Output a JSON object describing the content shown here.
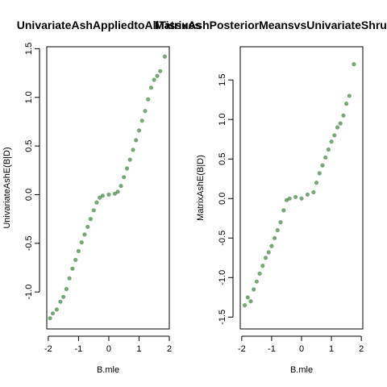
{
  "chart_data": [
    {
      "type": "scatter",
      "title": "UnivariateAshAppliedtoAllTissues",
      "xlabel": "B.mle",
      "ylabel": "UnivariateAshE(B|D)",
      "xlim": [
        -2.05,
        2.0
      ],
      "ylim": [
        -1.38,
        1.52
      ],
      "xticks": [
        -2,
        -1,
        0,
        1,
        2
      ],
      "yticks": [
        -1.0,
        -0.5,
        0.0,
        0.5,
        1.0,
        1.5
      ],
      "x_tick_labels": [
        "-2",
        "-1",
        "0",
        "1",
        "2"
      ],
      "y_tick_labels": [
        "-1.0",
        "-0.5",
        "0.0",
        "0.5",
        "1.0",
        "1.5"
      ],
      "grid": false,
      "point_color": "#0b5f0b",
      "pattern": "shrinkage band: approximately 0 near B.mle = 0, linear toward the diagonal for |B.mle| greater than 0.4",
      "points": [
        {
          "x": -1.94,
          "y": -1.27
        },
        {
          "x": -1.85,
          "y": -1.22
        },
        {
          "x": -1.72,
          "y": -1.18
        },
        {
          "x": -1.6,
          "y": -1.1
        },
        {
          "x": -1.5,
          "y": -1.05
        },
        {
          "x": -1.4,
          "y": -0.97
        },
        {
          "x": -1.3,
          "y": -0.86
        },
        {
          "x": -1.2,
          "y": -0.76
        },
        {
          "x": -1.1,
          "y": -0.67
        },
        {
          "x": -1.0,
          "y": -0.58
        },
        {
          "x": -0.9,
          "y": -0.49
        },
        {
          "x": -0.8,
          "y": -0.41
        },
        {
          "x": -0.7,
          "y": -0.33
        },
        {
          "x": -0.6,
          "y": -0.25
        },
        {
          "x": -0.5,
          "y": -0.16
        },
        {
          "x": -0.4,
          "y": -0.08
        },
        {
          "x": -0.3,
          "y": -0.03
        },
        {
          "x": -0.2,
          "y": -0.01
        },
        {
          "x": 0.0,
          "y": 0.0
        },
        {
          "x": 0.2,
          "y": 0.01
        },
        {
          "x": 0.3,
          "y": 0.03
        },
        {
          "x": 0.4,
          "y": 0.09
        },
        {
          "x": 0.5,
          "y": 0.18
        },
        {
          "x": 0.6,
          "y": 0.27
        },
        {
          "x": 0.7,
          "y": 0.36
        },
        {
          "x": 0.8,
          "y": 0.46
        },
        {
          "x": 0.9,
          "y": 0.56
        },
        {
          "x": 1.0,
          "y": 0.66
        },
        {
          "x": 1.1,
          "y": 0.76
        },
        {
          "x": 1.2,
          "y": 0.86
        },
        {
          "x": 1.3,
          "y": 0.98
        },
        {
          "x": 1.4,
          "y": 1.1
        },
        {
          "x": 1.5,
          "y": 1.18
        },
        {
          "x": 1.6,
          "y": 1.22
        },
        {
          "x": 1.7,
          "y": 1.27
        },
        {
          "x": 1.85,
          "y": 1.42
        }
      ]
    },
    {
      "type": "scatter",
      "title": "MatrixAshPosteriorMeansvsUnivariateShrunkenMeans",
      "xlabel": "B.mle",
      "ylabel": "MatrixAshE(B|D)",
      "xlim": [
        -2.05,
        2.05
      ],
      "ylim": [
        -1.65,
        1.92
      ],
      "xticks": [
        -2,
        -1,
        0,
        1,
        2
      ],
      "yticks": [
        -1.5,
        -1.0,
        -0.5,
        0.0,
        0.5,
        1.0,
        1.5
      ],
      "x_tick_labels": [
        "-2",
        "-1",
        "0",
        "1",
        "2"
      ],
      "y_tick_labels": [
        "-1.5",
        "-1.0",
        "-0.5",
        "0.0",
        "0.5",
        "1.0",
        "1.5"
      ],
      "grid": false,
      "point_color": "#0b5f0b",
      "pattern": "broad diagonal band with a flat plateau near 0 for small |B.mle|",
      "points": [
        {
          "x": -1.9,
          "y": -1.35
        },
        {
          "x": -1.8,
          "y": -1.25
        },
        {
          "x": -1.7,
          "y": -1.3
        },
        {
          "x": -1.6,
          "y": -1.15
        },
        {
          "x": -1.5,
          "y": -1.05
        },
        {
          "x": -1.4,
          "y": -0.95
        },
        {
          "x": -1.3,
          "y": -0.85
        },
        {
          "x": -1.2,
          "y": -0.75
        },
        {
          "x": -1.1,
          "y": -0.68
        },
        {
          "x": -1.0,
          "y": -0.6
        },
        {
          "x": -0.9,
          "y": -0.5
        },
        {
          "x": -0.8,
          "y": -0.4
        },
        {
          "x": -0.7,
          "y": -0.3
        },
        {
          "x": -0.6,
          "y": -0.15
        },
        {
          "x": -0.5,
          "y": -0.02
        },
        {
          "x": -0.4,
          "y": 0.0
        },
        {
          "x": -0.2,
          "y": 0.02
        },
        {
          "x": 0.0,
          "y": 0.0
        },
        {
          "x": 0.2,
          "y": 0.05
        },
        {
          "x": 0.4,
          "y": 0.08
        },
        {
          "x": 0.5,
          "y": 0.2
        },
        {
          "x": 0.6,
          "y": 0.32
        },
        {
          "x": 0.7,
          "y": 0.42
        },
        {
          "x": 0.8,
          "y": 0.52
        },
        {
          "x": 0.9,
          "y": 0.62
        },
        {
          "x": 1.0,
          "y": 0.72
        },
        {
          "x": 1.1,
          "y": 0.8
        },
        {
          "x": 1.2,
          "y": 0.9
        },
        {
          "x": 1.3,
          "y": 0.95
        },
        {
          "x": 1.4,
          "y": 1.05
        },
        {
          "x": 1.5,
          "y": 1.2
        },
        {
          "x": 1.6,
          "y": 1.3
        },
        {
          "x": 1.75,
          "y": 1.7
        }
      ]
    }
  ]
}
